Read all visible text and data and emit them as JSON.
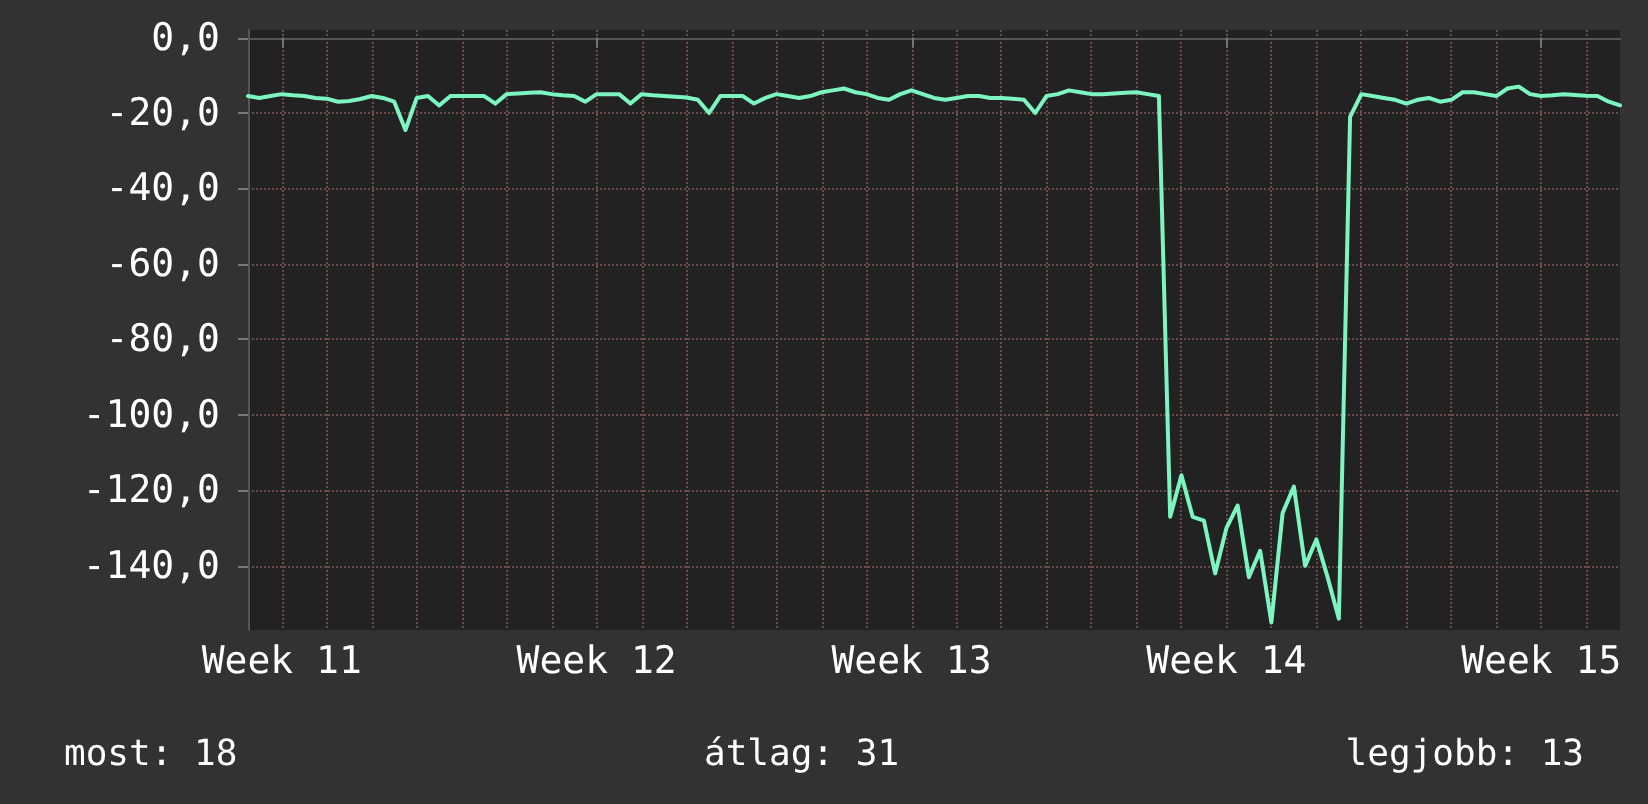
{
  "chart_data": {
    "type": "line",
    "line_style": "solid",
    "marker": "none",
    "grid": true,
    "categories": [
      null,
      null,
      null,
      "Week 11",
      null,
      null,
      null,
      null,
      null,
      null,
      null,
      null,
      null,
      null,
      null,
      null,
      null,
      null,
      null,
      null,
      null,
      null,
      null,
      null,
      null,
      null,
      null,
      null,
      null,
      null,
      null,
      "Week 12",
      null,
      null,
      null,
      null,
      null,
      null,
      null,
      null,
      null,
      null,
      null,
      null,
      null,
      null,
      null,
      null,
      null,
      null,
      null,
      null,
      null,
      null,
      null,
      null,
      null,
      null,
      null,
      "Week 13",
      null,
      null,
      null,
      null,
      null,
      null,
      null,
      null,
      null,
      null,
      null,
      null,
      null,
      null,
      null,
      null,
      null,
      null,
      null,
      null,
      null,
      null,
      null,
      null,
      null,
      null,
      null,
      "Week 14",
      null,
      null,
      null,
      null,
      null,
      null,
      null,
      null,
      null,
      null,
      null,
      null,
      null,
      null,
      null,
      null,
      null,
      null,
      null,
      null,
      null,
      null,
      null,
      null,
      null,
      null,
      null,
      "Week 15",
      null,
      null,
      null,
      null,
      null,
      null,
      null
    ],
    "ylim": [
      -157,
      2
    ],
    "yticks": [
      {
        "value": 0,
        "label": "0,0"
      },
      {
        "value": -20,
        "label": "-20,0"
      },
      {
        "value": -40,
        "label": "-40,0"
      },
      {
        "value": -60,
        "label": "-60,0"
      },
      {
        "value": -80,
        "label": "-80,0"
      },
      {
        "value": -100,
        "label": "-100,0"
      },
      {
        "value": -120,
        "label": "-120,0"
      },
      {
        "value": -140,
        "label": "-140,0"
      }
    ],
    "annotations": [
      "most: 18",
      "átlag: 31",
      "legjobb: 13"
    ],
    "series": [
      {
        "color": "#7cf5c0",
        "values": [
          -15.5,
          -16,
          -15.5,
          -15,
          -15.3,
          -15.5,
          -16,
          -16.2,
          -17,
          -16.8,
          -16.3,
          -15.5,
          -16,
          -17,
          -24.5,
          -16,
          -15.5,
          -18,
          -15.5,
          -15.5,
          -15.5,
          -15.5,
          -17.5,
          -15,
          -14.8,
          -14.6,
          -14.5,
          -15,
          -15.3,
          -15.5,
          -17,
          -15,
          -15,
          -15,
          -17.5,
          -15,
          -15.3,
          -15.5,
          -15.7,
          -15.9,
          -16.5,
          -20,
          -15.5,
          -15.5,
          -15.5,
          -17.5,
          -16,
          -15,
          -15.5,
          -16,
          -15.5,
          -14.5,
          -14,
          -13.5,
          -14.5,
          -15,
          -16,
          -16.5,
          -15,
          -14,
          -15,
          -16,
          -16.5,
          -16,
          -15.5,
          -15.5,
          -16,
          -16,
          -16.2,
          -16.5,
          -20,
          -15.5,
          -15,
          -14,
          -14.5,
          -15,
          -15,
          -14.8,
          -14.6,
          -14.5,
          -15,
          -15.5,
          -127,
          -116,
          -127,
          -128,
          -142,
          -130,
          -124,
          -143,
          -136,
          -155,
          -126,
          -119,
          -140,
          -133,
          -143,
          -154,
          -21,
          -15,
          -15.5,
          -16,
          -16.5,
          -17.5,
          -16.5,
          -16,
          -17,
          -16.5,
          -14.5,
          -14.5,
          -15,
          -15.5,
          -13.5,
          -13,
          -15,
          -15.5,
          -15.3,
          -15,
          -15.2,
          -15.4,
          -15.5,
          -17,
          -18
        ]
      }
    ]
  }
}
